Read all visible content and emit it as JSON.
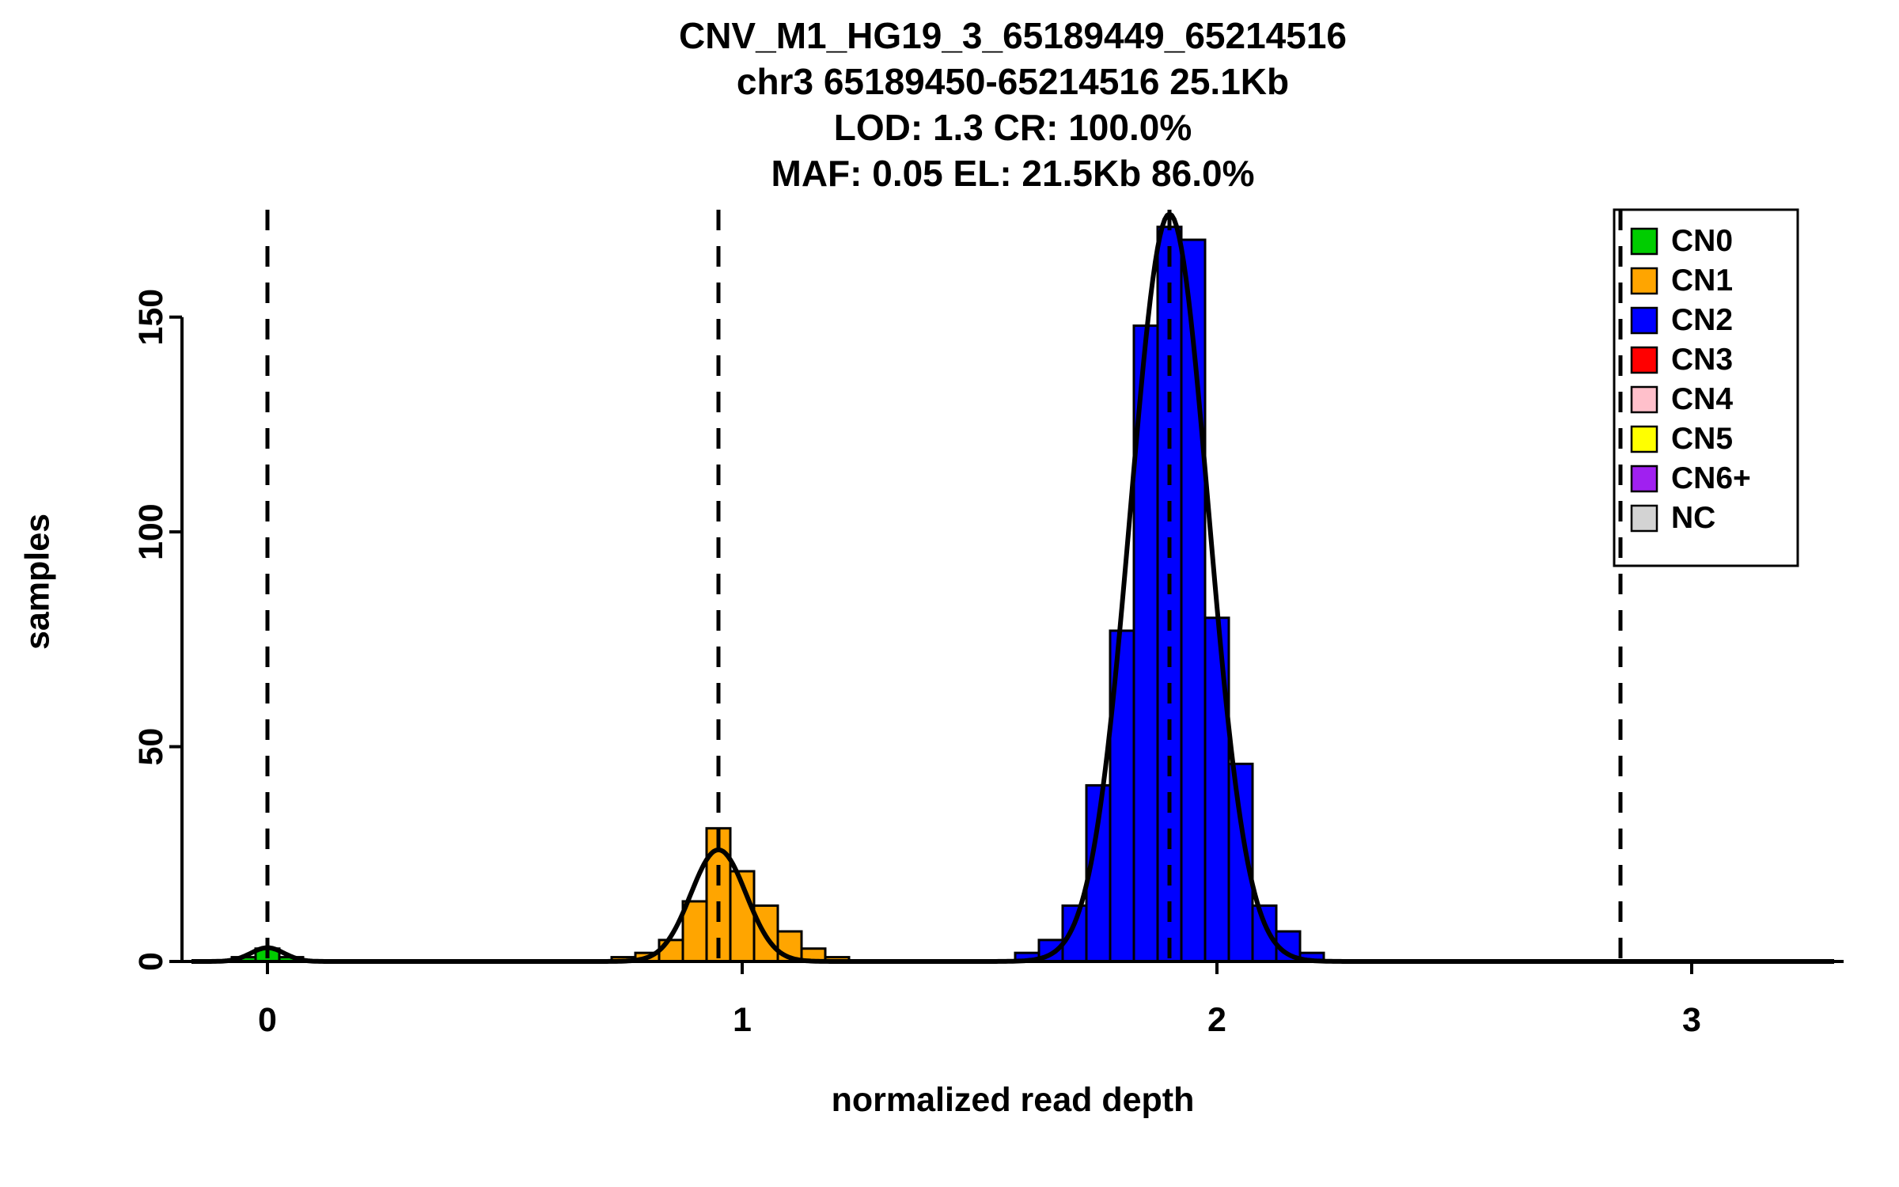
{
  "chart_data": {
    "type": "bar",
    "variant": "histogram_with_density_fit",
    "title_lines": [
      "CNV_M1_HG19_3_65189449_65214516",
      "chr3 65189450-65214516 25.1Kb",
      "LOD: 1.3 CR: 100.0%",
      "MAF: 0.05 EL: 21.5Kb 86.0%"
    ],
    "xlabel": "normalized read depth",
    "ylabel": "samples",
    "xlim": [
      -0.18,
      3.32
    ],
    "ylim": [
      0,
      175
    ],
    "x_ticks": [
      0,
      1,
      2,
      3
    ],
    "y_ticks": [
      0,
      50,
      100,
      150
    ],
    "bin_width": 0.05,
    "grid": false,
    "vlines": {
      "style": "dashed",
      "color": "#000000",
      "x": [
        0,
        0.95,
        1.9,
        2.85
      ]
    },
    "series": [
      {
        "name": "CN0",
        "color": "#00CD00",
        "bars": [
          {
            "x": -0.075,
            "h": 1
          },
          {
            "x": -0.025,
            "h": 3
          },
          {
            "x": 0.025,
            "h": 1
          }
        ],
        "fit": {
          "mean": 0.0,
          "sd": 0.035,
          "amp": 3.2
        }
      },
      {
        "name": "CN1",
        "color": "#FFA500",
        "bars": [
          {
            "x": 0.725,
            "h": 1
          },
          {
            "x": 0.775,
            "h": 2
          },
          {
            "x": 0.825,
            "h": 5
          },
          {
            "x": 0.875,
            "h": 14
          },
          {
            "x": 0.925,
            "h": 31
          },
          {
            "x": 0.975,
            "h": 21
          },
          {
            "x": 1.025,
            "h": 13
          },
          {
            "x": 1.075,
            "h": 7
          },
          {
            "x": 1.125,
            "h": 3
          },
          {
            "x": 1.175,
            "h": 1
          }
        ],
        "fit": {
          "mean": 0.95,
          "sd": 0.058,
          "amp": 26
        }
      },
      {
        "name": "CN2",
        "color": "#0000FF",
        "bars": [
          {
            "x": 1.575,
            "h": 2
          },
          {
            "x": 1.625,
            "h": 5
          },
          {
            "x": 1.675,
            "h": 13
          },
          {
            "x": 1.725,
            "h": 41
          },
          {
            "x": 1.775,
            "h": 77
          },
          {
            "x": 1.825,
            "h": 148
          },
          {
            "x": 1.875,
            "h": 171
          },
          {
            "x": 1.925,
            "h": 168
          },
          {
            "x": 1.975,
            "h": 80
          },
          {
            "x": 2.025,
            "h": 46
          },
          {
            "x": 2.075,
            "h": 13
          },
          {
            "x": 2.125,
            "h": 7
          },
          {
            "x": 2.175,
            "h": 2
          }
        ],
        "fit": {
          "mean": 1.9,
          "sd": 0.082,
          "amp": 174
        }
      }
    ],
    "fit_curve_color": "#000000",
    "axis_color": "#000000"
  },
  "legend": {
    "position": "top-right",
    "items": [
      {
        "label": "CN0",
        "color": "#00CD00"
      },
      {
        "label": "CN1",
        "color": "#FFA500"
      },
      {
        "label": "CN2",
        "color": "#0000FF"
      },
      {
        "label": "CN3",
        "color": "#FF0000"
      },
      {
        "label": "CN4",
        "color": "#FFC0CB"
      },
      {
        "label": "CN5",
        "color": "#FFFF00"
      },
      {
        "label": "CN6+",
        "color": "#A020F0"
      },
      {
        "label": "NC",
        "color": "#D3D3D3"
      }
    ]
  }
}
